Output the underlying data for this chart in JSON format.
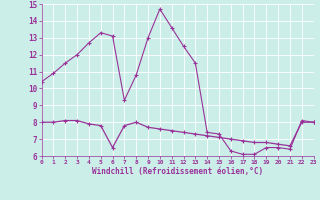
{
  "xlabel": "Windchill (Refroidissement éolien,°C)",
  "ylim": [
    6,
    15
  ],
  "xlim": [
    0,
    23
  ],
  "yticks": [
    6,
    7,
    8,
    9,
    10,
    11,
    12,
    13,
    14,
    15
  ],
  "xticks": [
    0,
    1,
    2,
    3,
    4,
    5,
    6,
    7,
    8,
    9,
    10,
    11,
    12,
    13,
    14,
    15,
    16,
    17,
    18,
    19,
    20,
    21,
    22,
    23
  ],
  "bg_color": "#cceee8",
  "line_color": "#993399",
  "grid_color": "#aadddd",
  "curve1_x": [
    0,
    1,
    2,
    3,
    4,
    5,
    6,
    7,
    8,
    9,
    10,
    11,
    12,
    13,
    14,
    15,
    16,
    17,
    18,
    19,
    20,
    21,
    22,
    23
  ],
  "curve1_y": [
    10.4,
    10.9,
    11.5,
    12.0,
    12.7,
    13.3,
    13.1,
    9.3,
    10.8,
    13.0,
    14.7,
    13.6,
    12.5,
    11.5,
    7.4,
    7.3,
    6.3,
    6.1,
    6.1,
    6.5,
    6.5,
    6.4,
    8.1,
    8.0
  ],
  "curve2_x": [
    0,
    1,
    2,
    3,
    4,
    5,
    6,
    7,
    8,
    9,
    10,
    11,
    12,
    13,
    14,
    15,
    16,
    17,
    18,
    19,
    20,
    21,
    22,
    23
  ],
  "curve2_y": [
    8.0,
    8.0,
    8.1,
    8.1,
    7.9,
    7.8,
    6.5,
    7.8,
    8.0,
    7.7,
    7.6,
    7.5,
    7.4,
    7.3,
    7.2,
    7.1,
    7.0,
    6.9,
    6.8,
    6.8,
    6.7,
    6.6,
    8.0,
    8.0
  ]
}
